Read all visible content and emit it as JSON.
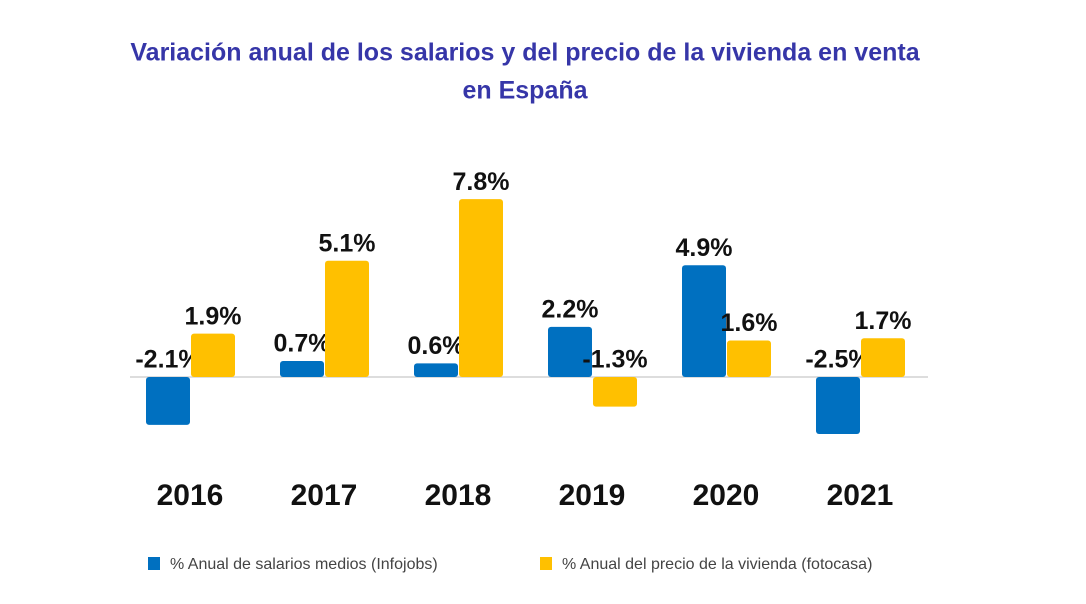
{
  "chart_data": {
    "type": "bar",
    "title": "Variación anual de los salarios y del precio de la vivienda en venta",
    "subtitle": "en España",
    "categories": [
      "2016",
      "2017",
      "2018",
      "2019",
      "2020",
      "2021"
    ],
    "series": [
      {
        "name": "% Anual de salarios medios (Infojobs)",
        "color": "#0070c0",
        "values": [
          -2.1,
          0.7,
          0.6,
          2.2,
          4.9,
          -2.5
        ],
        "value_labels": [
          "-2.1%",
          "0.7%",
          "0.6%",
          "2.2%",
          "4.9%",
          "-2.5%"
        ]
      },
      {
        "name": "% Anual del precio de la vivienda (fotocasa)",
        "color": "#ffc000",
        "values": [
          1.9,
          5.1,
          7.8,
          -1.3,
          1.6,
          1.7
        ],
        "value_labels": [
          "1.9%",
          "5.1%",
          "7.8%",
          "-1.3%",
          "1.6%",
          "1.7%"
        ]
      }
    ],
    "ylim": [
      -4,
      8
    ]
  }
}
